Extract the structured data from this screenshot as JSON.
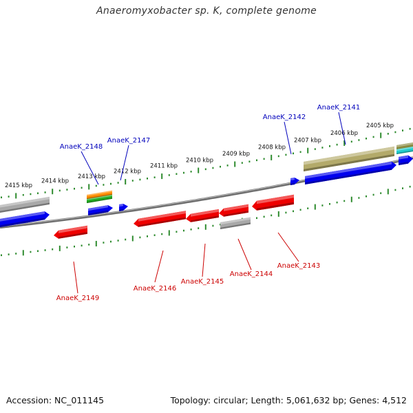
{
  "title": "Anaeromyxobacter sp. K, complete genome",
  "footer": {
    "accession_label": "Accession:",
    "accession": "NC_011145",
    "topology_label": "Topology:",
    "topology": "circular",
    "length_label": "Length:",
    "length": "5,061,632 bp",
    "genes_label": "Genes:",
    "genes": "4,512"
  },
  "colors": {
    "forward_gene": "#0000ee",
    "reverse_gene": "#ee0000",
    "pseudo_gene": "#a8a8a8",
    "olive_gene": "#b3aa6a",
    "orange_gene": "#ff8c00",
    "green_gene": "#22aa22",
    "cyan_gene": "#22cccc",
    "backbone": "#808080",
    "ruler": "#2e8b2e",
    "label_forward": "#0000bb",
    "label_reverse": "#cc0000"
  },
  "scale_unit": "kbp",
  "scale_ticks": [
    2405,
    2406,
    2407,
    2408,
    2409,
    2410,
    2411,
    2412,
    2413,
    2414,
    2415
  ],
  "genes_forward": [
    {
      "name": "AnaeK_2141",
      "color_key": "forward_gene"
    },
    {
      "name": "AnaeK_2142",
      "color_key": "forward_gene"
    },
    {
      "name": "AnaeK_2147",
      "color_key": "forward_gene"
    },
    {
      "name": "AnaeK_2148",
      "color_key": "forward_gene"
    }
  ],
  "genes_reverse": [
    {
      "name": "AnaeK_2143",
      "color_key": "reverse_gene"
    },
    {
      "name": "AnaeK_2144",
      "color_key": "pseudo_gene"
    },
    {
      "name": "AnaeK_2145",
      "color_key": "reverse_gene"
    },
    {
      "name": "AnaeK_2146",
      "color_key": "reverse_gene"
    },
    {
      "name": "AnaeK_2149",
      "color_key": "reverse_gene"
    }
  ]
}
